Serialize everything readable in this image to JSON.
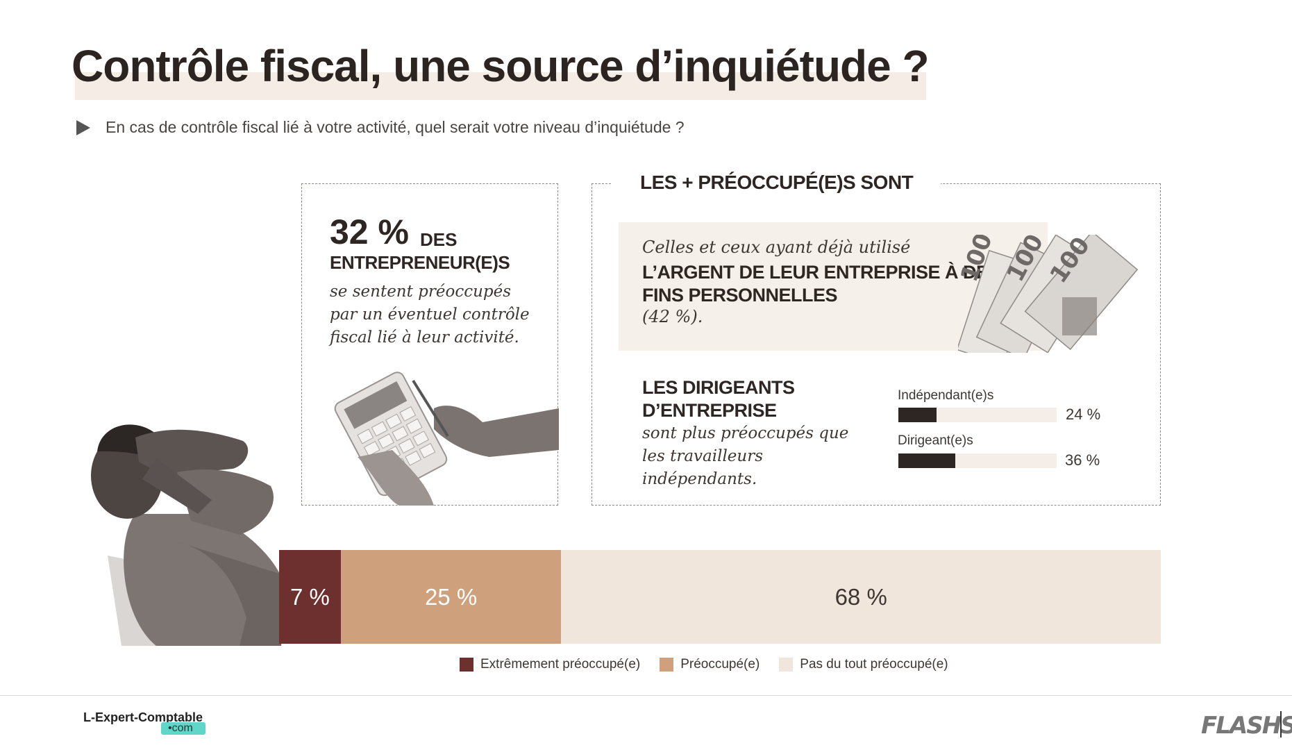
{
  "header": {
    "title": "Contrôle fiscal, une source d’inquiétude ?",
    "question": "En cas de contrôle fiscal lié à votre activité, quel serait votre niveau d’inquiétude ?"
  },
  "stat_box": {
    "percent": "32 %",
    "des": "DES",
    "entrepreneurs": "ENTREPRENEUR(E)S",
    "description": "se sentent préoccupés par un éventuel contrôle fiscal lié à leur activité."
  },
  "preoccupes_box": {
    "title": "LES + PRÉOCCUPÉ(E)S SONT",
    "argent_intro": "Celles et ceux ayant déjà utilisé",
    "argent_heading": "L’ARGENT DE LEUR ENTREPRISE À DES FINS PERSONNELLES",
    "argent_pct": "(42 %).",
    "dirigeants_heading": "LES DIRIGEANTS D’ENTREPRISE",
    "dirigeants_desc": "sont plus préoccupés que les travailleurs indépendants."
  },
  "chart_data": [
    {
      "type": "bar",
      "orientation": "horizontal",
      "categories": [
        "Indépendant(e)s",
        "Dirigeant(e)s"
      ],
      "values": [
        24,
        36
      ],
      "value_labels": [
        "24 %",
        "36 %"
      ],
      "xlim": [
        0,
        100
      ],
      "colors": {
        "fill": "#2e2623",
        "track": "#f5ede7"
      }
    },
    {
      "type": "bar",
      "stacked": true,
      "orientation": "horizontal",
      "series": [
        {
          "name": "Extrêmement préoccupé(e)",
          "value": 7,
          "label": "7 %",
          "color": "#6e2f2f",
          "text_color": "#ffffff"
        },
        {
          "name": "Préoccupé(e)",
          "value": 25,
          "label": "25 %",
          "color": "#cfa07c",
          "text_color": "#ffffff"
        },
        {
          "name": "Pas du tout préoccupé(e)",
          "value": 68,
          "label": "68 %",
          "color": "#f1e6dc",
          "text_color": "#3d3633"
        }
      ],
      "legend": "bottom"
    }
  ],
  "footer": {
    "brand": "L-Expert-Comptable",
    "brand_suffix": "•com",
    "logo_right": "FLASHS"
  }
}
